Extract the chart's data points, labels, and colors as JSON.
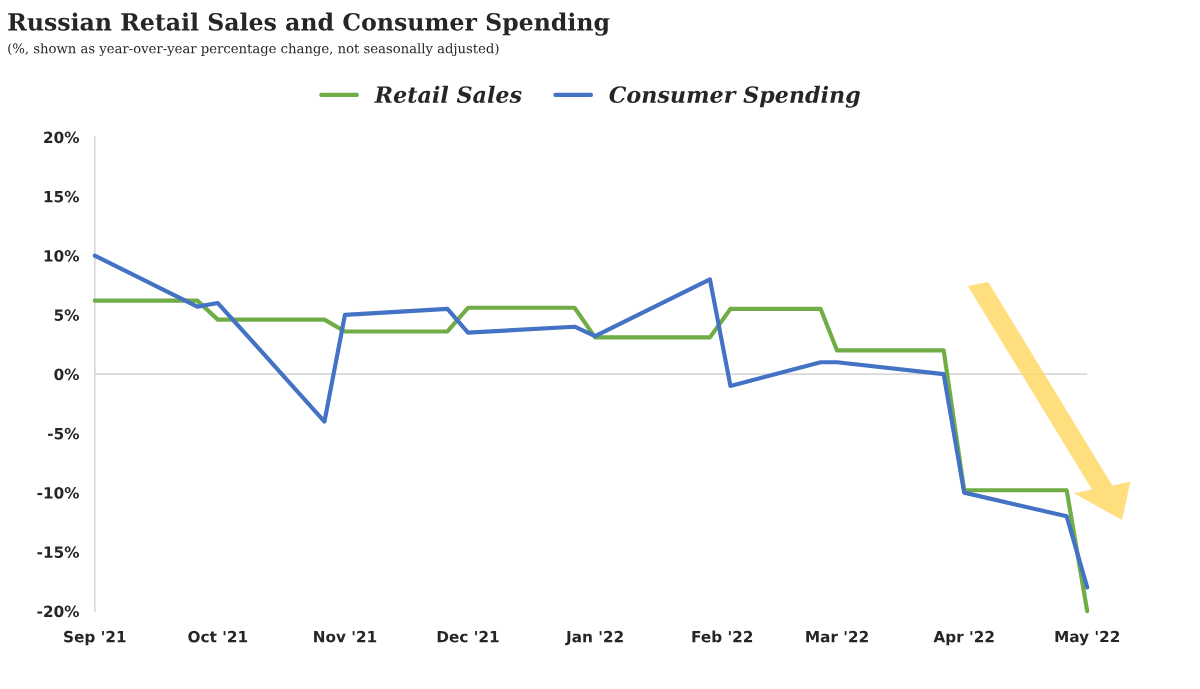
{
  "chart_data": {
    "type": "line",
    "title": "Russian Retail Sales and Consumer Spending",
    "subtitle": "(%, shown as year-over-year percentage change, not seasonally adjusted)",
    "x": [
      "2021-09-01",
      "2021-09-26",
      "2021-10-01",
      "2021-10-27",
      "2021-11-01",
      "2021-11-26",
      "2021-12-01",
      "2021-12-27",
      "2022-01-01",
      "2022-01-29",
      "2022-02-03",
      "2022-02-25",
      "2022-03-01",
      "2022-03-27",
      "2022-04-01",
      "2022-04-26",
      "2022-05-01"
    ],
    "xlim": [
      "2021-09-01",
      "2022-05-01"
    ],
    "xticks": [
      {
        "value": "2021-09-01",
        "label": "Sep '21"
      },
      {
        "value": "2021-10-01",
        "label": "Oct '21"
      },
      {
        "value": "2021-11-01",
        "label": "Nov '21"
      },
      {
        "value": "2021-12-01",
        "label": "Dec '21"
      },
      {
        "value": "2022-01-01",
        "label": "Jan '22"
      },
      {
        "value": "2022-02-01",
        "label": "Feb '22"
      },
      {
        "value": "2022-03-01",
        "label": "Mar '22"
      },
      {
        "value": "2022-04-01",
        "label": "Apr '22"
      },
      {
        "value": "2022-05-01",
        "label": "May '22"
      }
    ],
    "ylim": [
      -20,
      20
    ],
    "yticks": [
      {
        "value": 20,
        "label": "20%"
      },
      {
        "value": 15,
        "label": "15%"
      },
      {
        "value": 10,
        "label": "10%"
      },
      {
        "value": 5,
        "label": "5%"
      },
      {
        "value": 0,
        "label": "0%"
      },
      {
        "value": -5,
        "label": "-5%"
      },
      {
        "value": -10,
        "label": "-10%"
      },
      {
        "value": -15,
        "label": "-15%"
      },
      {
        "value": -20,
        "label": "-20%"
      }
    ],
    "grid": false,
    "legend": "top",
    "line_style": "solid",
    "marker": "none",
    "ref_lines": [
      {
        "axis": "y",
        "value": 0,
        "color": "#d9d9d9"
      }
    ],
    "series": [
      {
        "name": "Retail Sales",
        "color": "#70ad47",
        "values": [
          6.2,
          6.2,
          4.6,
          4.6,
          3.6,
          3.6,
          5.6,
          5.6,
          3.1,
          3.1,
          5.5,
          5.5,
          2.0,
          2.0,
          -9.8,
          -9.8,
          -20
        ]
      },
      {
        "name": "Consumer Spending",
        "color": "#4472c4",
        "values": [
          10.0,
          5.7,
          6.0,
          -4.0,
          5.0,
          5.5,
          3.5,
          4.0,
          3.2,
          8.0,
          -1.0,
          1.0,
          1.0,
          0.0,
          -10.0,
          -12.0,
          -18.0
        ]
      }
    ]
  }
}
